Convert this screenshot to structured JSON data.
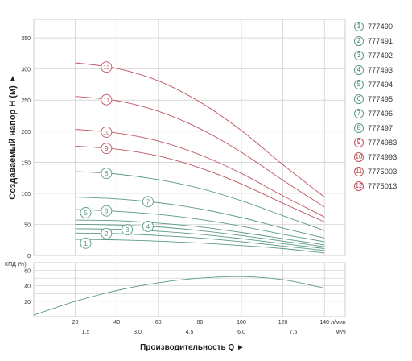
{
  "chart_data": [
    {
      "type": "line",
      "panel": "head",
      "ylabel": "Создаваемый напор Н (м) ►",
      "xlabel": "",
      "xlim": [
        0,
        150
      ],
      "ylim": [
        0,
        380
      ],
      "yticks": [
        0,
        50,
        100,
        150,
        200,
        250,
        300,
        350
      ],
      "grid": true,
      "legend_position": "right",
      "series": [
        {
          "name": "777490",
          "marker": "1",
          "color": "#5a9a80",
          "x": [
            20,
            40,
            60,
            80,
            100,
            120,
            140
          ],
          "y": [
            26,
            25,
            23,
            20,
            16,
            11,
            4
          ]
        },
        {
          "name": "777491",
          "marker": "2",
          "color": "#5a9a80",
          "x": [
            20,
            40,
            60,
            80,
            100,
            120,
            140
          ],
          "y": [
            36,
            35,
            32,
            28,
            22,
            15,
            8
          ]
        },
        {
          "name": "777492",
          "marker": "3",
          "color": "#5a9a80",
          "x": [
            20,
            40,
            60,
            80,
            100,
            120,
            140
          ],
          "y": [
            43,
            42,
            39,
            34,
            27,
            19,
            11
          ]
        },
        {
          "name": "777493",
          "marker": "4",
          "color": "#5a9a80",
          "x": [
            20,
            40,
            60,
            80,
            100,
            120,
            140
          ],
          "y": [
            50,
            49,
            46,
            40,
            32,
            23,
            14
          ]
        },
        {
          "name": "777494",
          "marker": "5",
          "color": "#5a9a80",
          "x": [
            20,
            40,
            60,
            80,
            100,
            120,
            140
          ],
          "y": [
            57,
            56,
            52,
            46,
            37,
            27,
            17
          ]
        },
        {
          "name": "777495",
          "marker": "6",
          "color": "#5a9a80",
          "x": [
            20,
            40,
            60,
            80,
            100,
            120,
            140
          ],
          "y": [
            74,
            71,
            66,
            58,
            47,
            34,
            22
          ]
        },
        {
          "name": "777496",
          "marker": "7",
          "color": "#5a9a80",
          "x": [
            20,
            40,
            60,
            80,
            100,
            120,
            140
          ],
          "y": [
            94,
            91,
            85,
            75,
            61,
            44,
            28
          ]
        },
        {
          "name": "777497",
          "marker": "8",
          "color": "#5a9a80",
          "x": [
            20,
            40,
            60,
            80,
            100,
            120,
            140
          ],
          "y": [
            135,
            131,
            122,
            108,
            88,
            64,
            40
          ]
        },
        {
          "name": "7774983",
          "marker": "9",
          "color": "#c0545e",
          "x": [
            20,
            40,
            60,
            80,
            100,
            120,
            140
          ],
          "y": [
            176,
            171,
            160,
            141,
            115,
            84,
            54
          ]
        },
        {
          "name": "7774993",
          "marker": "10",
          "color": "#c0545e",
          "x": [
            20,
            40,
            60,
            80,
            100,
            120,
            140
          ],
          "y": [
            203,
            197,
            184,
            162,
            132,
            96,
            62
          ]
        },
        {
          "name": "7775003",
          "marker": "11",
          "color": "#c0545e",
          "x": [
            20,
            40,
            60,
            80,
            100,
            120,
            140
          ],
          "y": [
            256,
            249,
            232,
            204,
            166,
            121,
            78
          ]
        },
        {
          "name": "7775013",
          "marker": "12",
          "color": "#c0545e",
          "x": [
            20,
            40,
            60,
            80,
            100,
            120,
            140
          ],
          "y": [
            310,
            301,
            281,
            247,
            201,
            146,
            94
          ]
        }
      ]
    },
    {
      "type": "line",
      "panel": "efficiency",
      "ylabel": "КПД (%)",
      "xlabel": "Производительность Q ►",
      "xlim": [
        0,
        150
      ],
      "ylim": [
        0,
        70
      ],
      "yticks": [
        20,
        40,
        60
      ],
      "grid": true,
      "series": [
        {
          "name": "",
          "color": "#5a9a80",
          "x": [
            0,
            20,
            40,
            60,
            80,
            100,
            120,
            140
          ],
          "y": [
            2,
            20,
            34,
            44,
            50,
            52,
            48,
            37
          ]
        }
      ]
    }
  ],
  "x_axis": {
    "lmin_ticks": [
      "20",
      "40",
      "60",
      "80",
      "100",
      "120",
      "140"
    ],
    "lmin_unit": "л/мин",
    "m3h_ticks": [
      "1.5",
      "3.0",
      "4.5",
      "6.0",
      "7.5"
    ],
    "m3h_unit": "м³/ч"
  },
  "labels": {
    "head_ylabel": "Создаваемый напор Н (м) ►",
    "eff_ylabel": "КПД (%)",
    "xlabel": "Производительность Q ►"
  },
  "legend": [
    {
      "marker": "1",
      "code": "777490",
      "color": "green"
    },
    {
      "marker": "2",
      "code": "777491",
      "color": "green"
    },
    {
      "marker": "3",
      "code": "777492",
      "color": "green"
    },
    {
      "marker": "4",
      "code": "777493",
      "color": "green"
    },
    {
      "marker": "5",
      "code": "777494",
      "color": "green"
    },
    {
      "marker": "6",
      "code": "777495",
      "color": "green"
    },
    {
      "marker": "7",
      "code": "777496",
      "color": "green"
    },
    {
      "marker": "8",
      "code": "777497",
      "color": "green"
    },
    {
      "marker": "9",
      "code": "7774983",
      "color": "red"
    },
    {
      "marker": "10",
      "code": "7774993",
      "color": "red"
    },
    {
      "marker": "11",
      "code": "7775003",
      "color": "red"
    },
    {
      "marker": "12",
      "code": "7775013",
      "color": "red"
    }
  ],
  "colors": {
    "green": "#5a9a80",
    "red": "#c0545e",
    "grid": "#cccccc",
    "axis": "#333333"
  }
}
